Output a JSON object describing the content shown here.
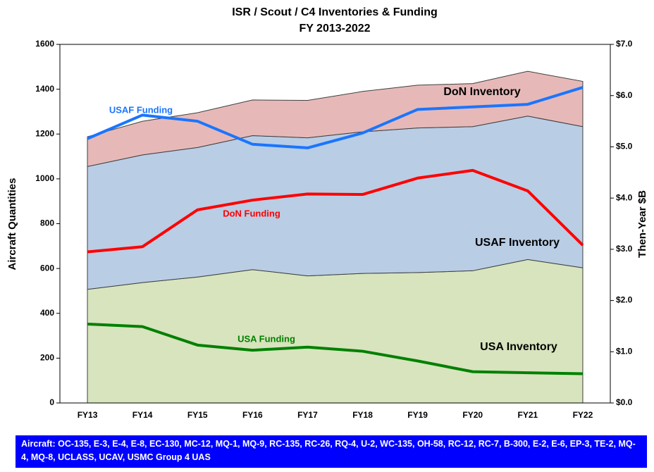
{
  "chart_data": {
    "type": "area",
    "title": "ISR / Scout / C4 Inventories & Funding",
    "subtitle": "FY 2013-2022",
    "y_label": "Aircraft Quantities",
    "y2_label": "Then-Year $B",
    "categories": [
      "FY13",
      "FY14",
      "FY15",
      "FY16",
      "FY17",
      "FY18",
      "FY19",
      "FY20",
      "FY21",
      "FY22"
    ],
    "ylim": [
      0,
      1600
    ],
    "yticks": [
      0,
      200,
      400,
      600,
      800,
      1000,
      1200,
      1400,
      1600
    ],
    "y2lim": [
      0,
      7
    ],
    "y2ticks": [
      {
        "value": 0,
        "label": "$0.0"
      },
      {
        "value": 1,
        "label": "$1.0"
      },
      {
        "value": 2,
        "label": "$2.0"
      },
      {
        "value": 3,
        "label": "$3.0"
      },
      {
        "value": 4,
        "label": "$4.0"
      },
      {
        "value": 5,
        "label": "$5.0"
      },
      {
        "value": 6,
        "label": "$6.0"
      },
      {
        "value": 7,
        "label": "$7.0"
      }
    ],
    "grid": false,
    "series": [
      {
        "name": "USA Inventory",
        "type": "area",
        "color": "#d7e4bd",
        "values": [
          507,
          537,
          562,
          595,
          567,
          578,
          582,
          590,
          640,
          603
        ]
      },
      {
        "name": "USAF Inventory",
        "type": "area",
        "color": "#b9cde5",
        "values": [
          548,
          570,
          578,
          598,
          616,
          632,
          645,
          643,
          640,
          630
        ]
      },
      {
        "name": "DoN Inventory",
        "type": "area",
        "color": "#e6b9b8",
        "values": [
          133,
          150,
          155,
          159,
          167,
          180,
          191,
          192,
          200,
          202
        ]
      },
      {
        "name": "USAF Funding",
        "type": "line",
        "axis": "y2",
        "color": "#1a75ff",
        "values": [
          5.16,
          5.62,
          5.5,
          5.05,
          4.98,
          5.27,
          5.73,
          5.78,
          5.83,
          6.16
        ]
      },
      {
        "name": "DoN Funding",
        "type": "line",
        "axis": "y2",
        "color": "#ff0000",
        "values": [
          2.95,
          3.05,
          3.77,
          3.96,
          4.08,
          4.07,
          4.39,
          4.54,
          4.14,
          3.08
        ]
      },
      {
        "name": "USA Funding",
        "type": "line",
        "axis": "y2",
        "color": "#008000",
        "values": [
          1.54,
          1.49,
          1.13,
          1.03,
          1.09,
          1.01,
          0.82,
          0.61,
          0.59,
          0.57
        ]
      }
    ]
  },
  "footnote": "Aircraft: OC-135, E-3, E-4, E-8, EC-130, MC-12, MQ-1, MQ-9, RC-135, RC-26, RQ-4, U-2, WC-135, OH-58, RC-12, RC-7, B-300, E-2, E-6, EP-3, TE-2,  MQ-4, MQ-8, UCLASS, UCAV, USMC Group 4 UAS"
}
